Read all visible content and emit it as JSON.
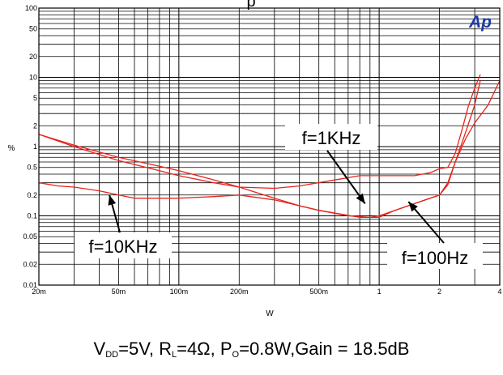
{
  "chart_data": {
    "type": "line",
    "title": "",
    "title_fragment": "p",
    "xlabel": "W",
    "ylabel": "%",
    "x_scale": "log",
    "y_scale": "log",
    "xlim": [
      0.02,
      4
    ],
    "ylim": [
      0.01,
      100
    ],
    "grid": true,
    "x_ticks": [
      {
        "v": 0.02,
        "label": "20m"
      },
      {
        "v": 0.05,
        "label": "50m"
      },
      {
        "v": 0.1,
        "label": "100m"
      },
      {
        "v": 0.2,
        "label": "200m"
      },
      {
        "v": 0.5,
        "label": "500m"
      },
      {
        "v": 1,
        "label": "1"
      },
      {
        "v": 2,
        "label": "2"
      },
      {
        "v": 4,
        "label": "4"
      }
    ],
    "y_ticks": [
      {
        "v": 0.01,
        "label": "0.01"
      },
      {
        "v": 0.02,
        "label": "0.02"
      },
      {
        "v": 0.05,
        "label": "0.05"
      },
      {
        "v": 0.1,
        "label": "0.1"
      },
      {
        "v": 0.2,
        "label": "0.2"
      },
      {
        "v": 0.5,
        "label": "0.5"
      },
      {
        "v": 1,
        "label": "1"
      },
      {
        "v": 2,
        "label": "2"
      },
      {
        "v": 5,
        "label": "5"
      },
      {
        "v": 10,
        "label": "10"
      },
      {
        "v": 20,
        "label": "20"
      },
      {
        "v": 50,
        "label": "50"
      },
      {
        "v": 100,
        "label": "100"
      }
    ],
    "series": [
      {
        "name": "f=1KHz",
        "color": "#e8241c",
        "points": [
          [
            0.02,
            1.5
          ],
          [
            0.03,
            1.0
          ],
          [
            0.05,
            0.63
          ],
          [
            0.08,
            0.45
          ],
          [
            0.1,
            0.38
          ],
          [
            0.15,
            0.3
          ],
          [
            0.2,
            0.26
          ],
          [
            0.3,
            0.25
          ],
          [
            0.4,
            0.27
          ],
          [
            0.6,
            0.33
          ],
          [
            0.8,
            0.38
          ],
          [
            1.0,
            0.38
          ],
          [
            1.5,
            0.38
          ],
          [
            1.8,
            0.42
          ],
          [
            2.0,
            0.48
          ],
          [
            2.2,
            0.5
          ],
          [
            2.4,
            0.8
          ],
          [
            2.6,
            1.8
          ],
          [
            2.8,
            4.0
          ],
          [
            3.0,
            7.0
          ],
          [
            3.2,
            11.0
          ]
        ]
      },
      {
        "name": "f=10KHz",
        "color": "#e8241c",
        "points": [
          [
            0.02,
            0.3
          ],
          [
            0.025,
            0.27
          ],
          [
            0.03,
            0.26
          ],
          [
            0.04,
            0.23
          ],
          [
            0.05,
            0.2
          ],
          [
            0.06,
            0.18
          ],
          [
            0.08,
            0.18
          ],
          [
            0.1,
            0.18
          ],
          [
            0.15,
            0.19
          ],
          [
            0.2,
            0.2
          ],
          [
            0.3,
            0.17
          ],
          [
            0.5,
            0.12
          ],
          [
            0.7,
            0.1
          ],
          [
            0.9,
            0.095
          ],
          [
            1.0,
            0.1
          ],
          [
            1.2,
            0.12
          ],
          [
            1.5,
            0.15
          ],
          [
            2.0,
            0.2
          ],
          [
            2.2,
            0.3
          ],
          [
            2.4,
            0.6
          ],
          [
            2.7,
            1.6
          ],
          [
            3.0,
            4.0
          ],
          [
            3.2,
            9.0
          ]
        ]
      },
      {
        "name": "f=100Hz",
        "color": "#e8241c",
        "points": [
          [
            0.02,
            1.5
          ],
          [
            0.03,
            1.05
          ],
          [
            0.05,
            0.7
          ],
          [
            0.08,
            0.52
          ],
          [
            0.1,
            0.45
          ],
          [
            0.15,
            0.33
          ],
          [
            0.2,
            0.26
          ],
          [
            0.3,
            0.18
          ],
          [
            0.4,
            0.14
          ],
          [
            0.5,
            0.12
          ],
          [
            0.6,
            0.11
          ],
          [
            0.8,
            0.095
          ],
          [
            1.0,
            0.095
          ],
          [
            1.2,
            0.12
          ],
          [
            1.5,
            0.15
          ],
          [
            2.0,
            0.2
          ],
          [
            2.2,
            0.28
          ],
          [
            2.4,
            0.6
          ],
          [
            2.7,
            1.3
          ],
          [
            3.0,
            2.2
          ],
          [
            3.5,
            4.0
          ],
          [
            4.0,
            9.0
          ]
        ]
      }
    ],
    "annotations": [
      {
        "text": "f=1KHz",
        "points_to": [
          0.85,
          0.15
        ]
      },
      {
        "text": "f=10KHz",
        "points_to": [
          0.045,
          0.2
        ]
      },
      {
        "text": "f=100Hz",
        "points_to": [
          1.4,
          0.16
        ]
      }
    ],
    "caption": {
      "parts": [
        {
          "t": "V",
          "sub": "DD"
        },
        {
          "t": "=5V, R",
          "sub": "L"
        },
        {
          "t": "=4Ω, P",
          "sub": "O"
        },
        {
          "t": "=0.8W,Gain = 18.5dB",
          "sub": ""
        }
      ]
    },
    "logo_text": "Ap",
    "logo_color": "#1f3aa6"
  }
}
